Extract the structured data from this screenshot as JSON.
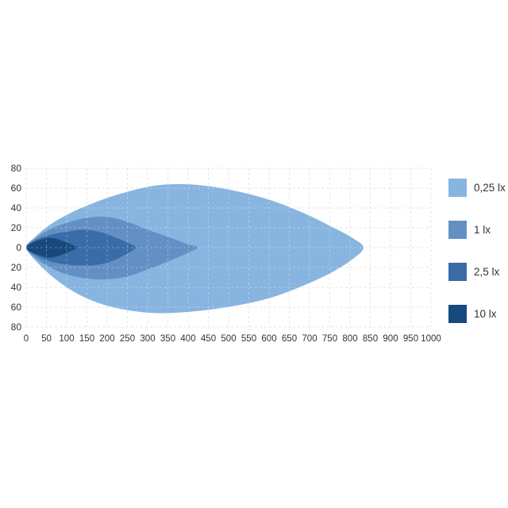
{
  "chart_data": {
    "type": "area",
    "subtype": "isolux-contours",
    "title": "",
    "xlabel": "",
    "ylabel": "",
    "x_range": [
      0,
      1000
    ],
    "y_range": [
      -80,
      80
    ],
    "x_ticks": [
      0,
      50,
      100,
      150,
      200,
      250,
      300,
      350,
      400,
      450,
      500,
      550,
      600,
      650,
      700,
      750,
      800,
      850,
      900,
      950,
      1000
    ],
    "y_tick_values": [
      80,
      60,
      40,
      20,
      0,
      -20,
      -40,
      -60,
      -80
    ],
    "y_tick_labels": [
      "80",
      "60",
      "40",
      "20",
      "0",
      "20",
      "40",
      "60",
      "80"
    ],
    "grid": {
      "on": true,
      "style": "dashed",
      "color": "#d9d9d9",
      "overlay_color": "rgba(255,255,255,0.30)",
      "x_step": 50,
      "y_step": 20
    },
    "tick_color": "#333333",
    "legend_position": "right",
    "series": [
      {
        "id": "contour-0-25lx",
        "name": "0,25 lx",
        "color": "#87b5df",
        "polygon": [
          [
            0,
            0
          ],
          [
            20,
            10
          ],
          [
            55,
            22
          ],
          [
            100,
            33
          ],
          [
            160,
            44
          ],
          [
            230,
            54
          ],
          [
            310,
            62
          ],
          [
            380,
            64
          ],
          [
            450,
            62
          ],
          [
            530,
            56
          ],
          [
            610,
            47
          ],
          [
            690,
            34
          ],
          [
            755,
            21
          ],
          [
            805,
            10
          ],
          [
            833,
            0
          ],
          [
            805,
            -12
          ],
          [
            750,
            -26
          ],
          [
            680,
            -39
          ],
          [
            600,
            -51
          ],
          [
            510,
            -59
          ],
          [
            420,
            -64
          ],
          [
            330,
            -66
          ],
          [
            250,
            -63
          ],
          [
            180,
            -56
          ],
          [
            120,
            -45
          ],
          [
            70,
            -31
          ],
          [
            30,
            -16
          ]
        ]
      },
      {
        "id": "contour-1lx",
        "name": "1 lx",
        "color": "#6390c4",
        "polygon": [
          [
            0,
            0
          ],
          [
            25,
            10
          ],
          [
            60,
            19
          ],
          [
            100,
            25
          ],
          [
            150,
            30
          ],
          [
            200,
            31
          ],
          [
            250,
            26
          ],
          [
            300,
            18
          ],
          [
            350,
            11
          ],
          [
            395,
            4
          ],
          [
            423,
            0
          ],
          [
            395,
            -6
          ],
          [
            350,
            -14
          ],
          [
            300,
            -22
          ],
          [
            250,
            -29
          ],
          [
            200,
            -32
          ],
          [
            150,
            -31
          ],
          [
            100,
            -27
          ],
          [
            60,
            -20
          ],
          [
            25,
            -11
          ]
        ]
      },
      {
        "id": "contour-2-5lx",
        "name": "2,5 lx",
        "color": "#3a6ca8",
        "polygon": [
          [
            0,
            0
          ],
          [
            25,
            8
          ],
          [
            60,
            13
          ],
          [
            100,
            16
          ],
          [
            140,
            18
          ],
          [
            180,
            16
          ],
          [
            215,
            11
          ],
          [
            245,
            6
          ],
          [
            270,
            0
          ],
          [
            245,
            -7
          ],
          [
            215,
            -13
          ],
          [
            180,
            -17
          ],
          [
            140,
            -18
          ],
          [
            100,
            -17
          ],
          [
            60,
            -14
          ],
          [
            25,
            -8
          ]
        ]
      },
      {
        "id": "contour-10lx",
        "name": "10 lx",
        "color": "#17497f",
        "polygon": [
          [
            0,
            0
          ],
          [
            15,
            5
          ],
          [
            35,
            8
          ],
          [
            55,
            10
          ],
          [
            75,
            9
          ],
          [
            95,
            6
          ],
          [
            112,
            3
          ],
          [
            126,
            0
          ],
          [
            112,
            -3
          ],
          [
            95,
            -6
          ],
          [
            75,
            -9
          ],
          [
            55,
            -10
          ],
          [
            35,
            -8
          ],
          [
            15,
            -5
          ]
        ]
      }
    ]
  }
}
